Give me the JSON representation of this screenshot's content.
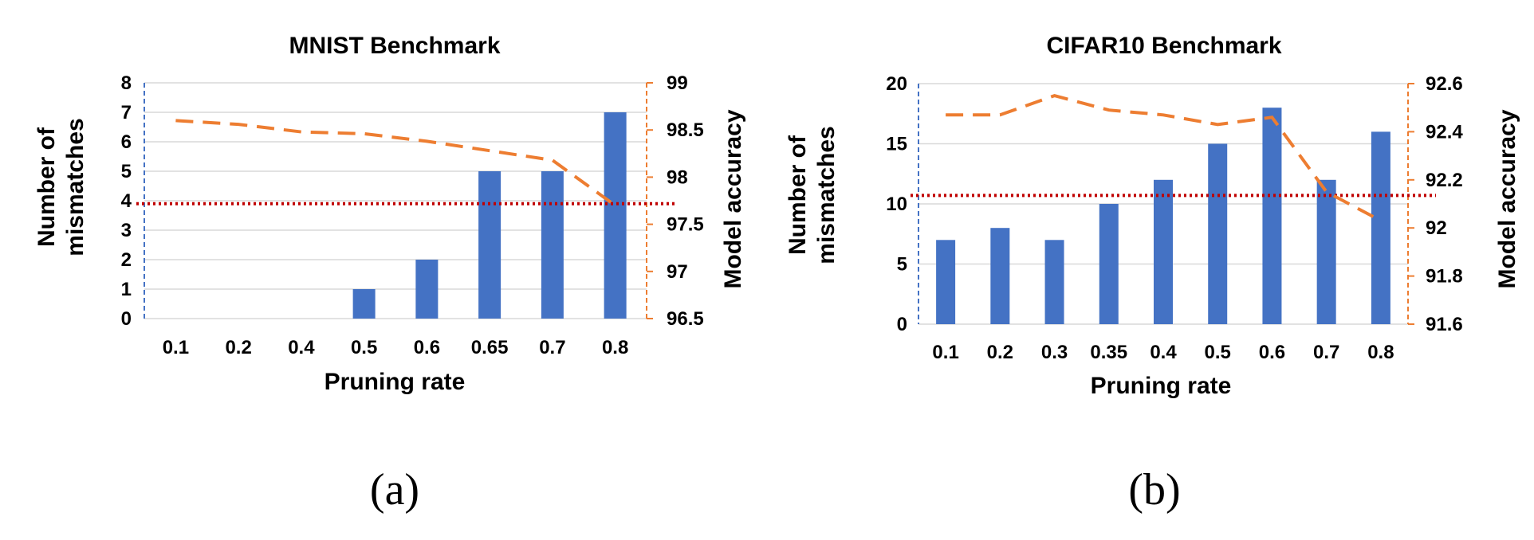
{
  "colors": {
    "bar": "#4472C4",
    "accuracy_line": "#ED7D31",
    "threshold_line": "#C00000",
    "left_axis": "#4472C4",
    "right_axis": "#ED7D31",
    "grid": "#D9D9D9"
  },
  "chart_data": [
    {
      "type": "bar",
      "panel_label": "(a)",
      "title": "MNIST Benchmark",
      "xlabel": "Pruning rate",
      "ylabel_lines": [
        "Number of",
        "mismatches"
      ],
      "y2label": "Model accuracy",
      "categories": [
        "0.1",
        "0.2",
        "0.4",
        "0.5",
        "0.6",
        "0.65",
        "0.7",
        "0.8"
      ],
      "ylim": [
        0,
        8
      ],
      "yticks": [
        "0",
        "1",
        "2",
        "3",
        "4",
        "5",
        "6",
        "7",
        "8"
      ],
      "y2lim": [
        96.5,
        99
      ],
      "y2ticks": [
        "96.5",
        "97",
        "97.5",
        "98",
        "98.5",
        "99"
      ],
      "grid": true,
      "series": [
        {
          "kind": "bar",
          "axis": "left",
          "values": [
            0,
            0,
            0,
            1,
            2,
            5,
            5,
            7
          ]
        },
        {
          "kind": "line",
          "style": "dashed",
          "axis": "right",
          "values": [
            98.6,
            98.56,
            98.48,
            98.46,
            98.38,
            98.28,
            98.18,
            97.7
          ]
        }
      ],
      "threshold": {
        "axis": "left",
        "value": 3.9,
        "style": "dotted"
      }
    },
    {
      "type": "bar",
      "panel_label": "(b)",
      "title": "CIFAR10 Benchmark",
      "xlabel": "Pruning rate",
      "ylabel_lines": [
        "Number of",
        "mismatches"
      ],
      "y2label": "Model accuracy",
      "categories": [
        "0.1",
        "0.2",
        "0.3",
        "0.35",
        "0.4",
        "0.5",
        "0.6",
        "0.7",
        "0.8"
      ],
      "ylim": [
        0,
        20
      ],
      "yticks": [
        "0",
        "5",
        "10",
        "15",
        "20"
      ],
      "y2lim": [
        91.6,
        92.6
      ],
      "y2ticks": [
        "91.6",
        "91.8",
        "92",
        "92.2",
        "92.4",
        "92.6"
      ],
      "grid": true,
      "series": [
        {
          "kind": "bar",
          "axis": "left",
          "values": [
            7,
            8,
            7,
            10,
            12,
            15,
            18,
            12,
            16
          ]
        },
        {
          "kind": "line",
          "style": "dashed",
          "axis": "right",
          "values": [
            92.47,
            92.47,
            92.55,
            92.49,
            92.47,
            92.43,
            92.46,
            92.15,
            92.03
          ]
        }
      ],
      "threshold": {
        "axis": "left",
        "value": 10.7,
        "style": "dotted"
      }
    }
  ]
}
